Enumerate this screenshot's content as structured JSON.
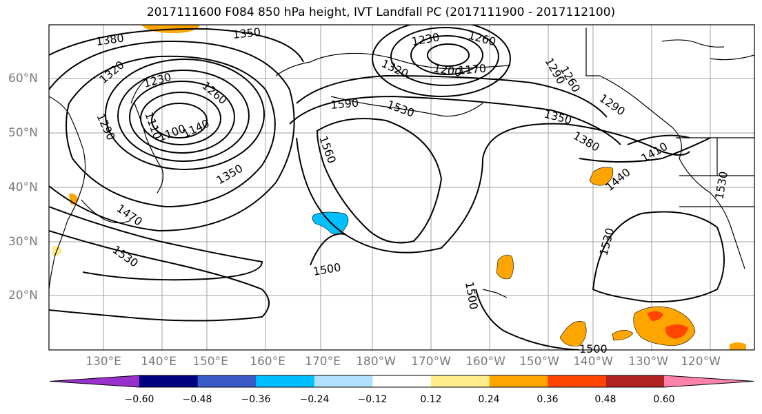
{
  "title": "2017111600 F084 850 hPa height, IVT Landfall PC (2017111900 - 2017112100)",
  "lat_labels": [
    "60°N",
    "50°N",
    "40°N",
    "30°N",
    "20°N"
  ],
  "lon_labels": [
    "130°E",
    "140°E",
    "150°E",
    "160°E",
    "170°E",
    "180°W",
    "170°W",
    "160°W",
    "150°W",
    "140°W",
    "130°W",
    "120°W"
  ],
  "contour_labels": [
    "1380",
    "1350",
    "1320",
    "1230",
    "1260",
    "1290",
    "1110",
    "1100",
    "1140",
    "1350",
    "1230",
    "1260",
    "1320",
    "1200",
    "1170",
    "1290",
    "1260",
    "1590",
    "1530",
    "1350",
    "1380",
    "1290",
    "1410",
    "1440",
    "1560",
    "1470",
    "1530",
    "1500",
    "1500",
    "1530",
    "1530",
    "1500"
  ],
  "colorbar": {
    "ticks": [
      "−0.60",
      "−0.48",
      "−0.36",
      "−0.24",
      "−0.12",
      "0.12",
      "0.24",
      "0.36",
      "0.48",
      "0.60"
    ],
    "colors": [
      "#9932cc",
      "#000080",
      "#3a5bc7",
      "#00bfff",
      "#b0e2ff",
      "#ffffff",
      "#ffec8b",
      "#ffa500",
      "#ff4500",
      "#b22222",
      "#ff82ab"
    ]
  }
}
